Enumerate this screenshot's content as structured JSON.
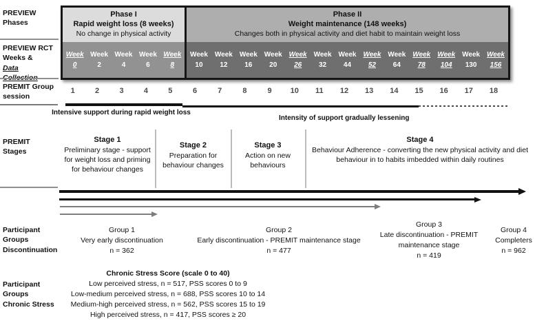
{
  "row_labels": {
    "phases": {
      "l1": "PREVIEW",
      "l2": "Phases"
    },
    "rct": {
      "l1": "PREVIEW RCT",
      "l2_plain": "Weeks & ",
      "l2_em": "Data",
      "l3_em": "Collection"
    },
    "sessions": {
      "l1": "PREMIT Group",
      "l2": "session"
    },
    "stages": {
      "l1": "PREMIT",
      "l2": "Stages"
    },
    "discontinuation": {
      "l1": "Participant",
      "l2": "Groups",
      "l3": "Discontinuation"
    },
    "chronic": {
      "l1": "Participant",
      "l2": "Groups",
      "l3": "Chronic Stress"
    }
  },
  "phases": {
    "phase1": {
      "title": "Phase I",
      "subtitle": "Rapid weight loss (8 weeks)",
      "desc": "No change in physical activity"
    },
    "phase2": {
      "title": "Phase II",
      "subtitle": "Weight maintenance (148 weeks)",
      "desc": "Changes both in physical activity and diet habit to maintain weight loss"
    }
  },
  "weeks": {
    "phase1": [
      {
        "label": "Week",
        "num": "0",
        "dc": true
      },
      {
        "label": "Week",
        "num": "2",
        "dc": false
      },
      {
        "label": "Week",
        "num": "4",
        "dc": false
      },
      {
        "label": "Week",
        "num": "6",
        "dc": false
      },
      {
        "label": "Week",
        "num": "8",
        "dc": true
      }
    ],
    "phase2": [
      {
        "label": "Week",
        "num": "10",
        "dc": false
      },
      {
        "label": "Week",
        "num": "12",
        "dc": false
      },
      {
        "label": "Week",
        "num": "16",
        "dc": false
      },
      {
        "label": "Week",
        "num": "20",
        "dc": false
      },
      {
        "label": "Week",
        "num": "26",
        "dc": true
      },
      {
        "label": "Week",
        "num": "32",
        "dc": false
      },
      {
        "label": "Week",
        "num": "44",
        "dc": false
      },
      {
        "label": "Week",
        "num": "52",
        "dc": true
      },
      {
        "label": "Week",
        "num": "64",
        "dc": false
      },
      {
        "label": "Week",
        "num": "78",
        "dc": true
      },
      {
        "label": "Week",
        "num": "104",
        "dc": true
      },
      {
        "label": "Week",
        "num": "130",
        "dc": false
      },
      {
        "label": "Week",
        "num": "156",
        "dc": true
      }
    ]
  },
  "sessions": {
    "phase1": [
      "1",
      "2",
      "3",
      "4",
      "5"
    ],
    "phase2": [
      "6",
      "7",
      "8",
      "9",
      "10",
      "11",
      "12",
      "13",
      "14",
      "15",
      "16",
      "17",
      "18"
    ]
  },
  "support": {
    "intensive_label": "Intensive support during rapid weight loss",
    "lessening_label": "Intensity of support gradually lessening"
  },
  "stages": {
    "s1": {
      "title": "Stage 1",
      "body": "Preliminary stage - support for weight loss and priming for behaviour changes"
    },
    "s2": {
      "title": "Stage 2",
      "body": "Preparation for behaviour changes"
    },
    "s3": {
      "title": "Stage 3",
      "body": "Action on new behaviours"
    },
    "s4": {
      "title": "Stage 4",
      "body": "Behaviour Adherence - converting the new physical activity and diet behaviour in to habits imbedded within daily routines"
    }
  },
  "groups": {
    "g1": {
      "title": "Group 1",
      "desc": "Very early discontinuation",
      "n": "n = 362"
    },
    "g2": {
      "title": "Group 2",
      "desc": "Early discontinuation - PREMIT maintenance stage",
      "n": "n = 477"
    },
    "g3": {
      "title": "Group 3",
      "desc": "Late discontinuation - PREMIT maintenance stage",
      "n": "n = 419"
    },
    "g4": {
      "title": "Group 4",
      "desc": "Completers",
      "n": "n = 962"
    }
  },
  "chronic_stress": {
    "title": "Chronic Stress Score (scale 0 to 40)",
    "lines": [
      "Low perceived stress, n = 517, PSS scores 0 to 9",
      "Low-medium perceived stress, n = 688, PSS scores 10 to 14",
      "Medium-high perceived stress, n = 562, PSS scores 15 to 19",
      "High perceived stress, n = 417, PSS scores ≥ 20"
    ]
  },
  "colors": {
    "phase1_header_bg": "#dcdcdc",
    "phase2_header_bg": "#aeaeae",
    "phase1_week_bg": "#929292",
    "phase2_week_bg": "#6f6f6f",
    "table_border": "#161616",
    "gray_arrow": "#7d7d7d"
  }
}
